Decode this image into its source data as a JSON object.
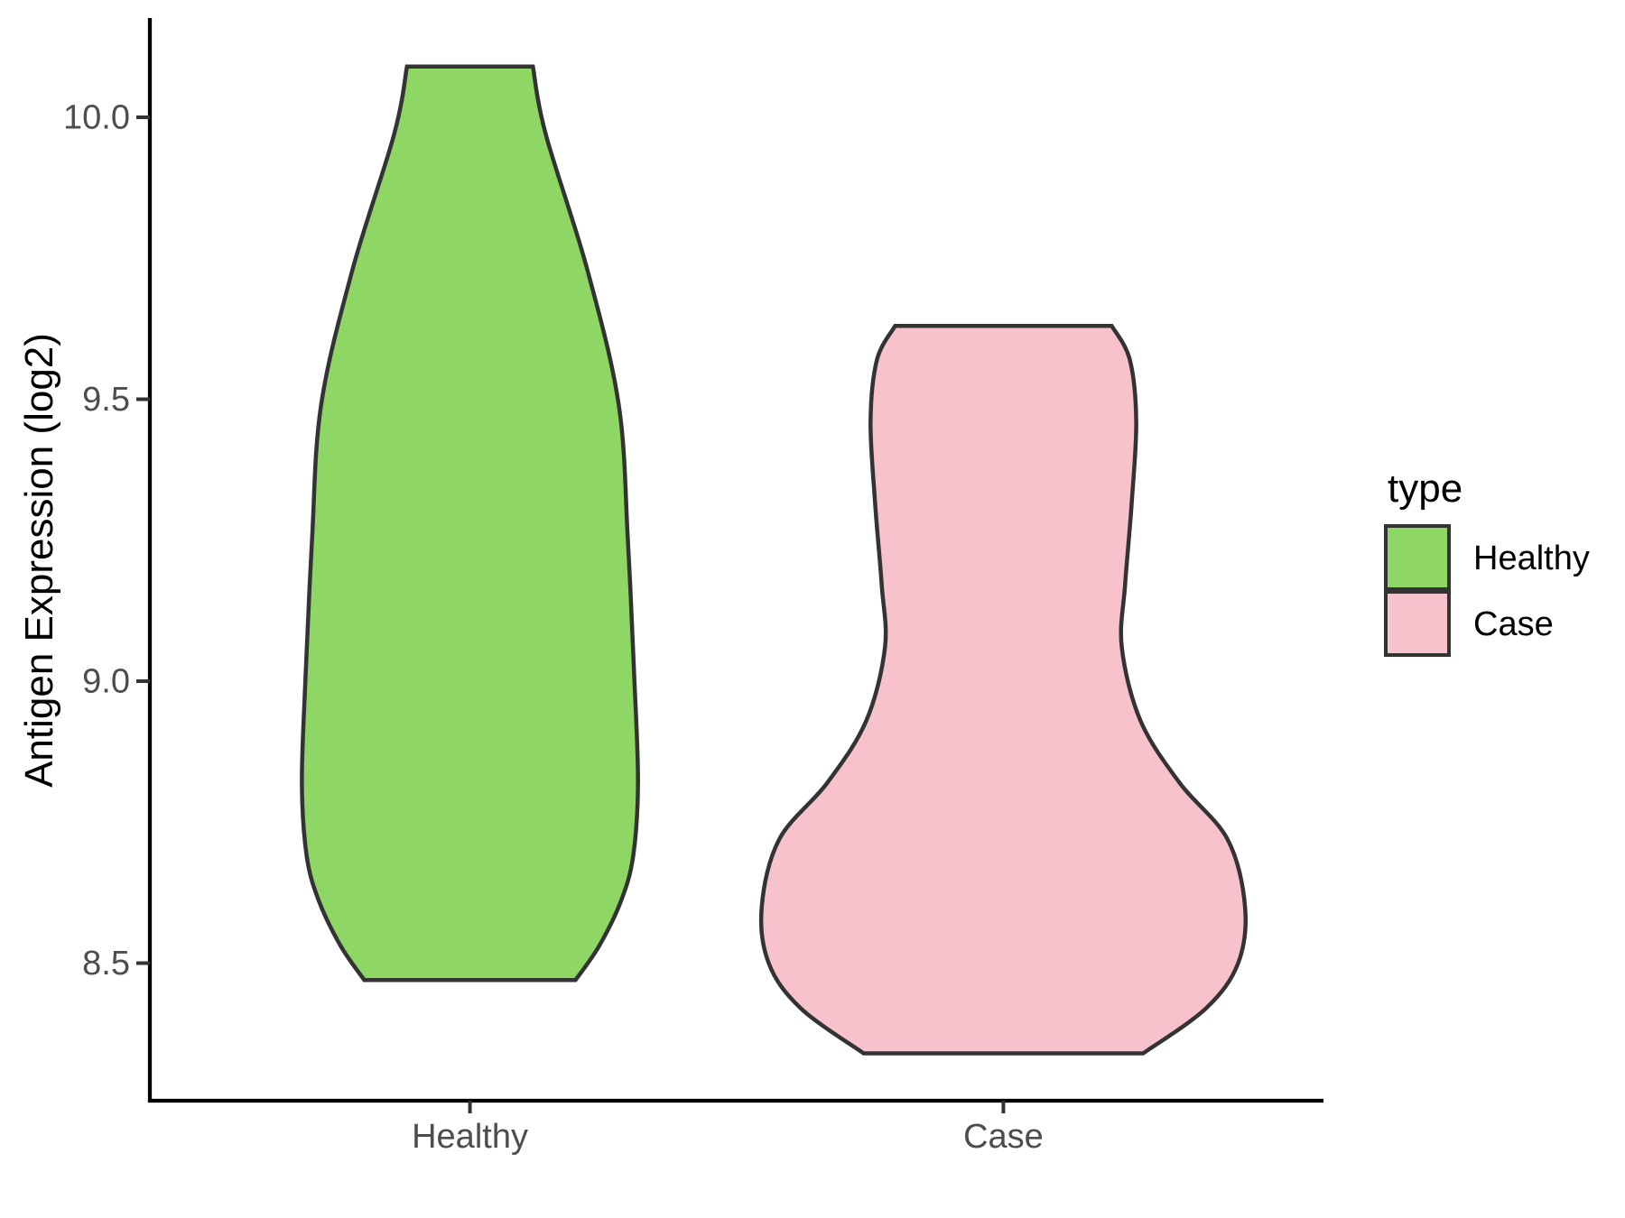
{
  "chart_data": {
    "type": "violin",
    "title": "",
    "xlabel": "",
    "ylabel": "Antigen Expression (log2)",
    "categories": [
      "Healthy",
      "Case"
    ],
    "y_ticks": [
      8.5,
      9.0,
      9.5,
      10.0
    ],
    "y_tick_labels": [
      "8.5",
      "9.0",
      "9.5",
      "10.0"
    ],
    "ylim": [
      8.26,
      10.18
    ],
    "grid": "off",
    "legend_position": "right",
    "legend": {
      "title": "type",
      "entries": [
        {
          "label": "Healthy",
          "color": "#8FD765"
        },
        {
          "label": "Case",
          "color": "#F8C2CD"
        }
      ]
    },
    "outline_color": "#333333",
    "axis_color": "#000000",
    "tick_color": "#333333",
    "axis_text_color": "#4d4d4d",
    "series": [
      {
        "name": "Healthy",
        "fill": "#8FD765",
        "min": 8.47,
        "max": 10.09,
        "profile": [
          [
            10.09,
            0.118
          ],
          [
            9.97,
            0.142
          ],
          [
            9.73,
            0.22
          ],
          [
            9.49,
            0.279
          ],
          [
            9.25,
            0.296
          ],
          [
            9.01,
            0.308
          ],
          [
            8.82,
            0.315
          ],
          [
            8.69,
            0.306
          ],
          [
            8.61,
            0.283
          ],
          [
            8.53,
            0.242
          ],
          [
            8.47,
            0.198
          ]
        ]
      },
      {
        "name": "Case",
        "fill": "#F8C2CD",
        "min": 8.34,
        "max": 9.63,
        "profile": [
          [
            9.63,
            0.203
          ],
          [
            9.57,
            0.237
          ],
          [
            9.46,
            0.249
          ],
          [
            9.31,
            0.24
          ],
          [
            9.17,
            0.228
          ],
          [
            9.06,
            0.222
          ],
          [
            8.93,
            0.257
          ],
          [
            8.82,
            0.33
          ],
          [
            8.72,
            0.42
          ],
          [
            8.6,
            0.453
          ],
          [
            8.5,
            0.44
          ],
          [
            8.42,
            0.38
          ],
          [
            8.34,
            0.262
          ]
        ]
      }
    ]
  }
}
